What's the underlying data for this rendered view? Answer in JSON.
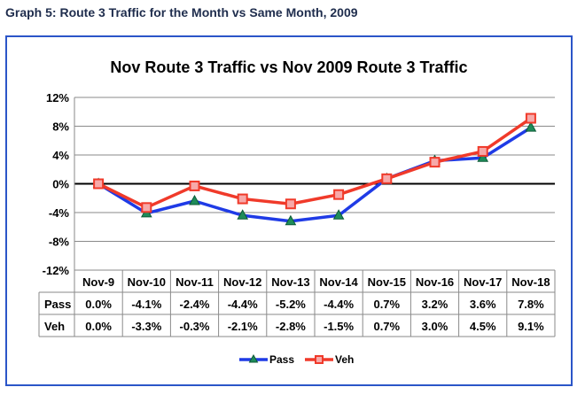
{
  "caption": "Graph 5: Route 3 Traffic for the Month vs Same Month, 2009",
  "colors": {
    "pass": "#1f3be6",
    "veh": "#f03a2a",
    "frame": "#2b55c8"
  },
  "chart_data": {
    "type": "line",
    "title": "Nov Route 3 Traffic vs Nov 2009  Route 3 Traffic",
    "categories": [
      "Nov-9",
      "Nov-10",
      "Nov-11",
      "Nov-12",
      "Nov-13",
      "Nov-14",
      "Nov-15",
      "Nov-16",
      "Nov-17",
      "Nov-18"
    ],
    "ylim": [
      -12,
      12
    ],
    "yticks": [
      12,
      8,
      4,
      0,
      -4,
      -8,
      -12
    ],
    "ytick_labels": [
      "12%",
      "8%",
      "4%",
      "0%",
      "-4%",
      "-8%",
      "-12%"
    ],
    "series": [
      {
        "name": "Pass",
        "values": [
          0.0,
          -4.1,
          -2.4,
          -4.4,
          -5.2,
          -4.4,
          0.7,
          3.2,
          3.6,
          7.8
        ],
        "labels": [
          "0.0%",
          "-4.1%",
          "-2.4%",
          "-4.4%",
          "-5.2%",
          "-4.4%",
          "0.7%",
          "3.2%",
          "3.6%",
          "7.8%"
        ]
      },
      {
        "name": "Veh",
        "values": [
          0.0,
          -3.3,
          -0.3,
          -2.1,
          -2.8,
          -1.5,
          0.7,
          3.0,
          4.5,
          9.1
        ],
        "labels": [
          "0.0%",
          "-3.3%",
          "-0.3%",
          "-2.1%",
          "-2.8%",
          "-1.5%",
          "0.7%",
          "3.0%",
          "4.5%",
          "9.1%"
        ]
      }
    ],
    "legend": "bottom-center",
    "grid": true
  }
}
